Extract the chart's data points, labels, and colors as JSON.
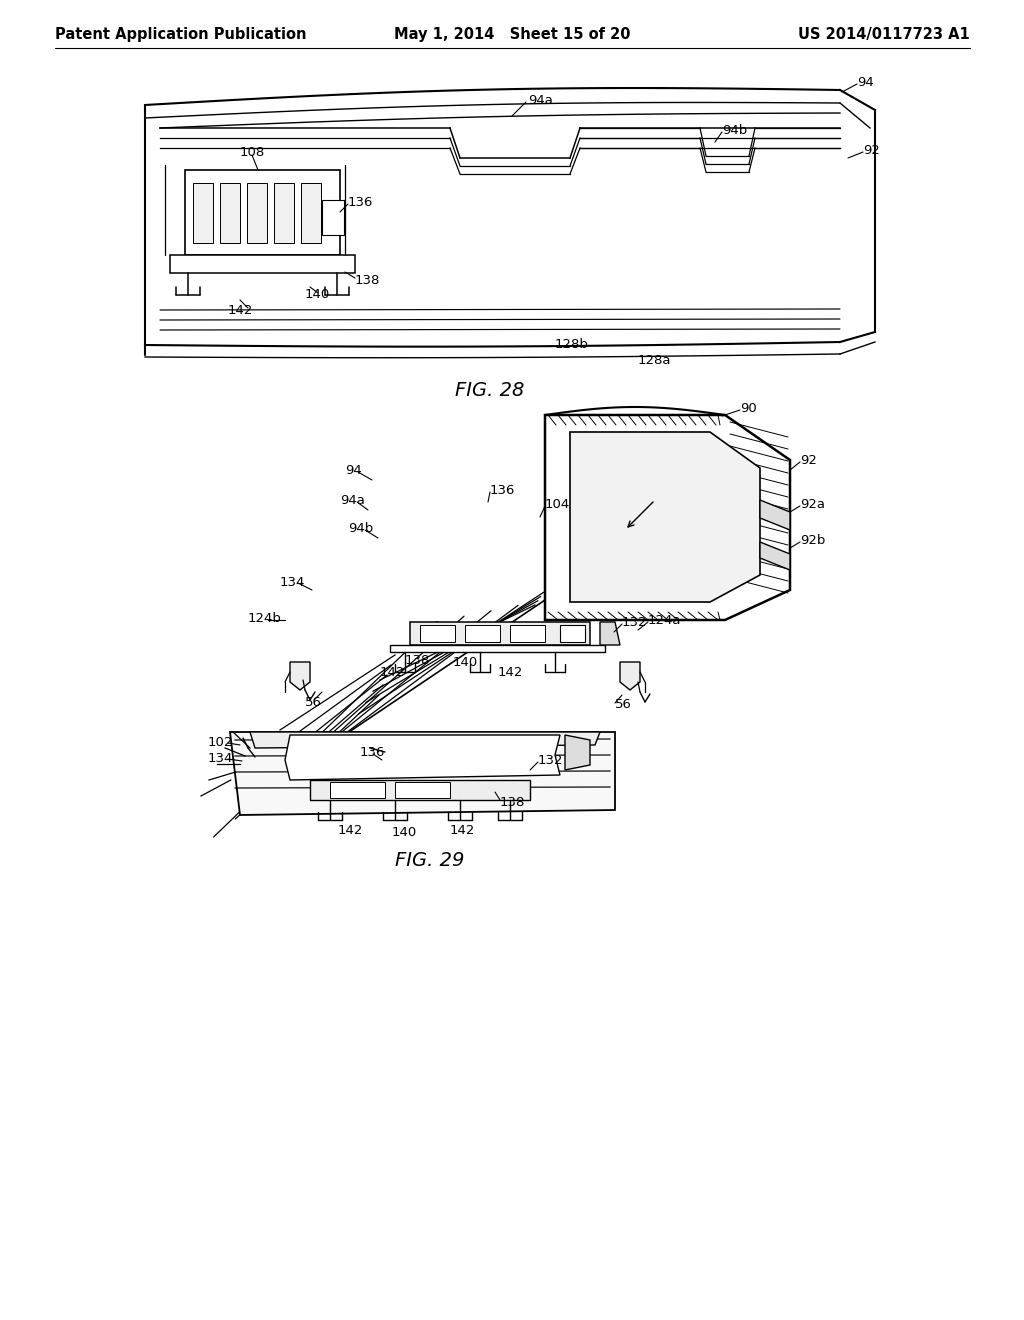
{
  "background_color": "#ffffff",
  "header_left": "Patent Application Publication",
  "header_center": "May 1, 2014   Sheet 15 of 20",
  "header_right": "US 2014/0117723 A1",
  "header_fontsize": 10.5,
  "fig28_caption": "FIG. 28",
  "fig29_caption": "FIG. 29",
  "caption_fontsize": 14
}
